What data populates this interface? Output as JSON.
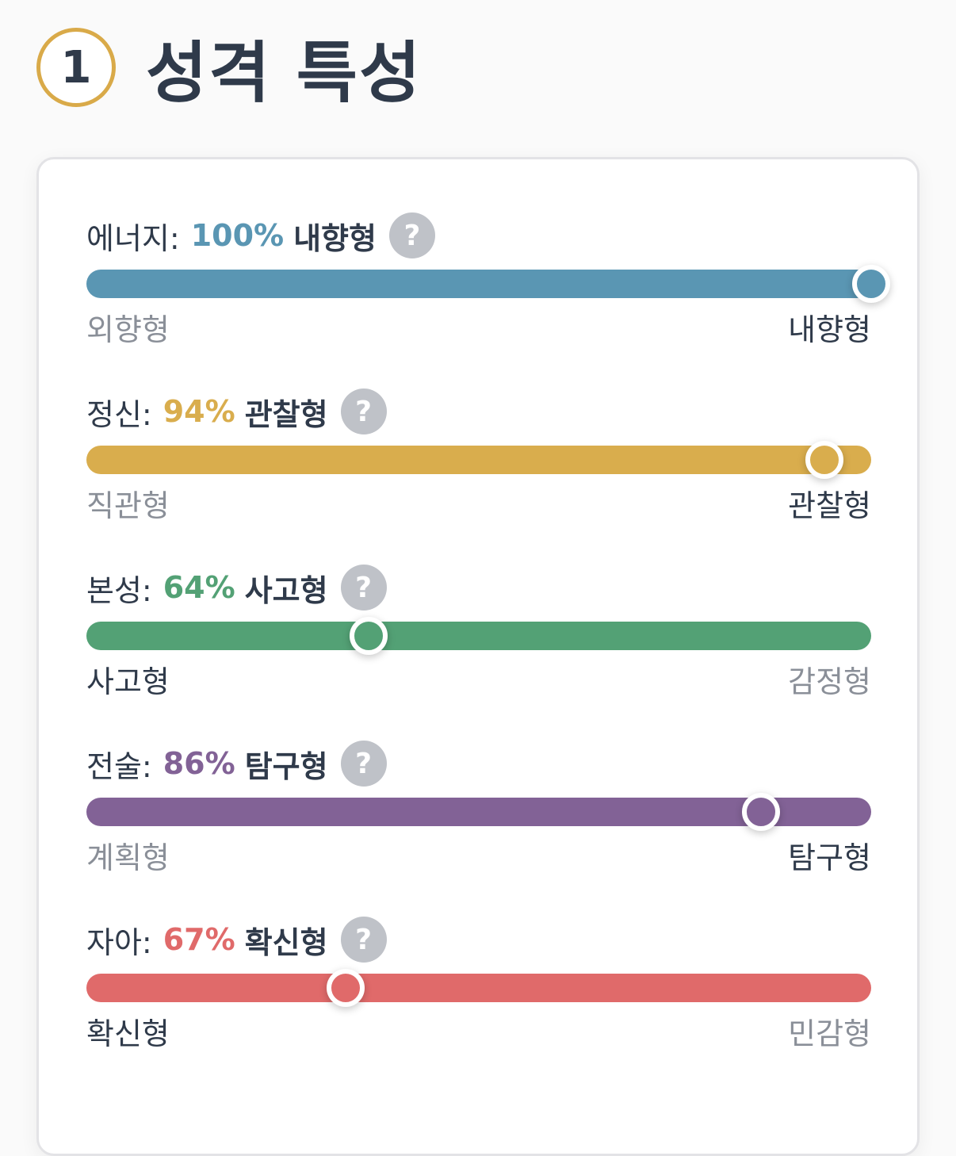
{
  "header": {
    "step_number": "1",
    "title": "성격 특성"
  },
  "traits": [
    {
      "name": "에너지:",
      "percent_text": "100%",
      "type": "내향형",
      "color": "#5a96b3",
      "position": 1.0,
      "left_label": "외향형",
      "right_label": "내향형",
      "active_side": "right",
      "help_icon": "question-mark-icon"
    },
    {
      "name": "정신:",
      "percent_text": "94%",
      "type": "관찰형",
      "color": "#d9ad4d",
      "position": 0.94,
      "left_label": "직관형",
      "right_label": "관찰형",
      "active_side": "right",
      "help_icon": "question-mark-icon"
    },
    {
      "name": "본성:",
      "percent_text": "64%",
      "type": "사고형",
      "color": "#53a175",
      "position": 0.36,
      "left_label": "사고형",
      "right_label": "감정형",
      "active_side": "left",
      "help_icon": "question-mark-icon"
    },
    {
      "name": "전술:",
      "percent_text": "86%",
      "type": "탐구형",
      "color": "#826296",
      "position": 0.86,
      "left_label": "계획형",
      "right_label": "탐구형",
      "active_side": "right",
      "help_icon": "question-mark-icon"
    },
    {
      "name": "자아:",
      "percent_text": "67%",
      "type": "확신형",
      "color": "#e06a6a",
      "position": 0.33,
      "left_label": "확신형",
      "right_label": "민감형",
      "active_side": "left",
      "help_icon": "question-mark-icon"
    }
  ]
}
